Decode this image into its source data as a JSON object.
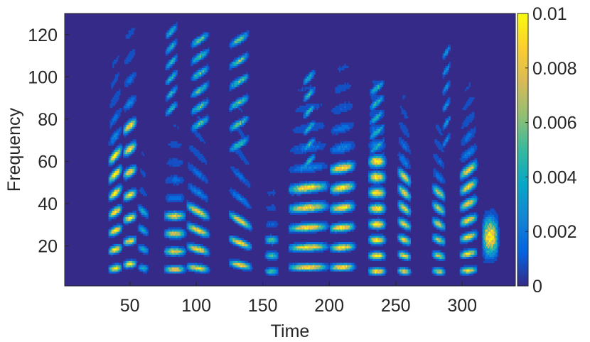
{
  "chart_data": {
    "type": "heatmap",
    "title": "",
    "xlabel": "Time",
    "ylabel": "Frequency",
    "xlim": [
      1,
      340
    ],
    "ylim": [
      1,
      130
    ],
    "xticks": [
      50,
      100,
      150,
      200,
      250,
      300
    ],
    "yticks": [
      20,
      40,
      60,
      80,
      100,
      120
    ],
    "colorbar": {
      "min": 0,
      "max": 0.01,
      "ticks": [
        "0",
        "0.002",
        "0.004",
        "0.006",
        "0.008",
        "0.01"
      ],
      "colormap": "parula",
      "colors": [
        "#352a87",
        "#0363e1",
        "#1485d4",
        "#06a7c6",
        "#38b99e",
        "#92bf73",
        "#d9ba56",
        "#fcce2e",
        "#f9fb0e"
      ]
    },
    "background_color": "#352a87",
    "grid": false,
    "segments": [
      {
        "t_start": 34,
        "t_end": 44,
        "f0": 9,
        "n_harmonics": 7,
        "slope": 0.05,
        "strength": 1.0
      },
      {
        "t_start": 45,
        "t_end": 55,
        "f0": 11,
        "n_harmonics": 7,
        "slope": 0.03,
        "strength": 0.95
      },
      {
        "t_start": 56,
        "t_end": 64,
        "f0": 9,
        "n_harmonics": 4,
        "slope": -0.05,
        "strength": 0.4
      },
      {
        "t_start": 76,
        "t_end": 92,
        "f0": 8.5,
        "n_harmonics": 4,
        "slope": 0.0,
        "strength": 0.85
      },
      {
        "t_start": 93,
        "t_end": 110,
        "f0": 9,
        "n_harmonics": 4,
        "slope": -0.08,
        "strength": 0.9
      },
      {
        "t_start": 125,
        "t_end": 142,
        "f0": 10.5,
        "n_harmonics": 3,
        "slope": -0.1,
        "strength": 0.9
      },
      {
        "t_start": 152,
        "t_end": 162,
        "f0": 7.5,
        "n_harmonics": 3,
        "slope": 0.0,
        "strength": 0.55
      },
      {
        "t_start": 170,
        "t_end": 200,
        "f0": 9.5,
        "n_harmonics": 5,
        "slope": 0.02,
        "strength": 0.95
      },
      {
        "t_start": 201,
        "t_end": 220,
        "f0": 9.5,
        "n_harmonics": 6,
        "slope": 0.02,
        "strength": 1.0
      },
      {
        "t_start": 230,
        "t_end": 243,
        "f0": 7.5,
        "n_harmonics": 8,
        "slope": 0.0,
        "strength": 1.0
      },
      {
        "t_start": 252,
        "t_end": 262,
        "f0": 7.5,
        "n_harmonics": 7,
        "slope": -0.05,
        "strength": 0.85
      },
      {
        "t_start": 278,
        "t_end": 288,
        "f0": 7.5,
        "n_harmonics": 6,
        "slope": -0.05,
        "strength": 0.75
      },
      {
        "t_start": 299,
        "t_end": 312,
        "f0": 8,
        "n_harmonics": 7,
        "slope": 0.05,
        "strength": 0.9
      },
      {
        "t_start": 316,
        "t_end": 328,
        "f0": 24,
        "n_harmonics": 1,
        "slope": 0.0,
        "strength": 1.0
      }
    ],
    "high_frequency_streaks": [
      {
        "t_start": 76,
        "t_end": 86,
        "f_start": 122,
        "f_end": 85,
        "strength": 0.7
      },
      {
        "t_start": 95,
        "t_end": 110,
        "f_start": 118,
        "f_end": 78,
        "strength": 0.85
      },
      {
        "t_start": 124,
        "t_end": 140,
        "f_start": 118,
        "f_end": 68,
        "strength": 0.9
      },
      {
        "t_start": 180,
        "t_end": 190,
        "f_start": 100,
        "f_end": 60,
        "strength": 0.7
      },
      {
        "t_start": 230,
        "t_end": 242,
        "f_start": 95,
        "f_end": 60,
        "strength": 0.75
      },
      {
        "t_start": 285,
        "t_end": 292,
        "f_start": 112,
        "f_end": 70,
        "strength": 0.5
      }
    ]
  }
}
